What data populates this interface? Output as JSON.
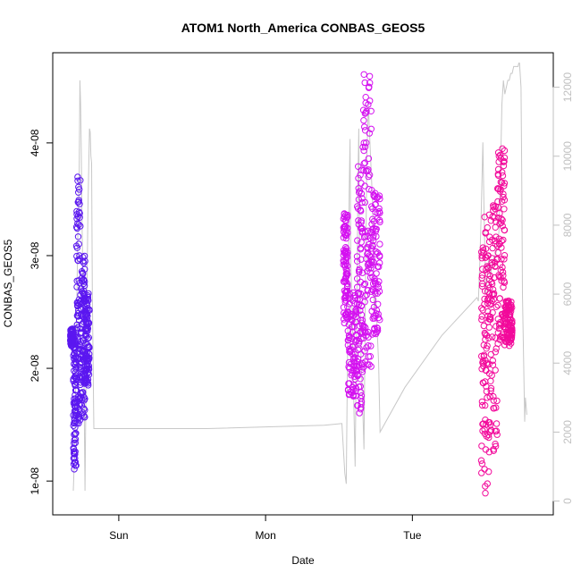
{
  "chart_data": {
    "type": "scatter",
    "title": "ATOM1 North_America CONBAS_GEOS5",
    "xlabel": "Date",
    "ylabel": "CONBAS_GEOS5",
    "x_ticks": [
      {
        "label": "Sun",
        "day": 1.0
      },
      {
        "label": "Mon",
        "day": 2.0
      },
      {
        "label": "Tue",
        "day": 3.0
      }
    ],
    "x_range_days": [
      0.55,
      3.96
    ],
    "ylim": [
      7e-09,
      4.8e-08
    ],
    "y_ticks": [
      {
        "label": "1e-08",
        "value": 1e-08
      },
      {
        "label": "2e-08",
        "value": 2e-08
      },
      {
        "label": "3e-08",
        "value": 3e-08
      },
      {
        "label": "4e-08",
        "value": 4e-08
      }
    ],
    "y2_range": [
      -400,
      13000
    ],
    "y2_ticks": [
      {
        "label": "0",
        "value": 0
      },
      {
        "label": "2000",
        "value": 2000
      },
      {
        "label": "4000",
        "value": 4000
      },
      {
        "label": "6000",
        "value": 6000
      },
      {
        "label": "8000",
        "value": 8000
      },
      {
        "label": "10000",
        "value": 10000
      },
      {
        "label": "12000",
        "value": 12000
      }
    ],
    "grey_line_color": "#c8c8c8",
    "grey_line": [
      [
        0.69,
        300
      ],
      [
        0.7,
        1500
      ],
      [
        0.71,
        4500
      ],
      [
        0.72,
        7500
      ],
      [
        0.73,
        9500
      ],
      [
        0.735,
        12200
      ],
      [
        0.74,
        11500
      ],
      [
        0.745,
        10000
      ],
      [
        0.75,
        8000
      ],
      [
        0.76,
        5200
      ],
      [
        0.765,
        2500
      ],
      [
        0.77,
        300
      ],
      [
        0.78,
        5000
      ],
      [
        0.79,
        8500
      ],
      [
        0.8,
        10800
      ],
      [
        0.805,
        10700
      ],
      [
        0.81,
        10000
      ],
      [
        0.815,
        9800
      ],
      [
        0.82,
        6000
      ],
      [
        0.83,
        2100
      ],
      [
        1.2,
        2100
      ],
      [
        1.6,
        2100
      ],
      [
        2.0,
        2150
      ],
      [
        2.4,
        2200
      ],
      [
        2.52,
        2250
      ],
      [
        2.53,
        1500
      ],
      [
        2.54,
        800
      ],
      [
        2.55,
        500
      ],
      [
        2.56,
        5000
      ],
      [
        2.57,
        9000
      ],
      [
        2.575,
        10500
      ],
      [
        2.58,
        7000
      ],
      [
        2.59,
        5500
      ],
      [
        2.6,
        3000
      ],
      [
        2.61,
        1000
      ],
      [
        2.62,
        5000
      ],
      [
        2.63,
        9500
      ],
      [
        2.635,
        10800
      ],
      [
        2.64,
        7000
      ],
      [
        2.65,
        4200
      ],
      [
        2.66,
        3000
      ],
      [
        2.67,
        1500
      ],
      [
        2.68,
        6000
      ],
      [
        2.69,
        10000
      ],
      [
        2.7,
        11500
      ],
      [
        2.71,
        10500
      ],
      [
        2.72,
        9500
      ],
      [
        2.73,
        8500
      ],
      [
        2.74,
        5500
      ],
      [
        2.75,
        6000
      ],
      [
        2.76,
        5000
      ],
      [
        2.77,
        4000
      ],
      [
        2.78,
        2000
      ],
      [
        2.95,
        3300
      ],
      [
        3.2,
        4800
      ],
      [
        3.44,
        5900
      ],
      [
        3.45,
        5800
      ],
      [
        3.46,
        7000
      ],
      [
        3.47,
        8500
      ],
      [
        3.48,
        10400
      ],
      [
        3.49,
        8000
      ],
      [
        3.5,
        6000
      ],
      [
        3.52,
        7000
      ],
      [
        3.53,
        6500
      ],
      [
        3.55,
        7000
      ],
      [
        3.57,
        7200
      ],
      [
        3.59,
        7800
      ],
      [
        3.6,
        9500
      ],
      [
        3.61,
        11500
      ],
      [
        3.62,
        12200
      ],
      [
        3.63,
        11800
      ],
      [
        3.65,
        12200
      ],
      [
        3.66,
        12200
      ],
      [
        3.67,
        12400
      ],
      [
        3.68,
        12400
      ],
      [
        3.69,
        12600
      ],
      [
        3.7,
        12600
      ],
      [
        3.71,
        12600
      ],
      [
        3.72,
        12600
      ],
      [
        3.725,
        12700
      ],
      [
        3.73,
        12700
      ],
      [
        3.74,
        12000
      ],
      [
        3.745,
        9500
      ],
      [
        3.75,
        6000
      ],
      [
        3.76,
        3500
      ],
      [
        3.765,
        2300
      ],
      [
        3.77,
        3000
      ],
      [
        3.78,
        2500
      ]
    ],
    "series": [
      {
        "color": "#5b17f0",
        "clusters": [
          {
            "x": [
              0.67,
              0.69
            ],
            "y": [
              2.2e-08,
              2.35e-08
            ]
          },
          {
            "x": [
              0.69,
              0.71
            ],
            "y": [
              1.1e-08,
              2.3e-08
            ]
          },
          {
            "x": [
              0.71,
              0.74
            ],
            "y": [
              1.5e-08,
              3.75e-08
            ]
          },
          {
            "x": [
              0.74,
              0.77
            ],
            "y": [
              1.55e-08,
              3e-08
            ]
          },
          {
            "x": [
              0.77,
              0.8
            ],
            "y": [
              1.85e-08,
              2.7e-08
            ]
          }
        ]
      },
      {
        "color": "#d411f0",
        "clusters": [
          {
            "x": [
              2.53,
              2.56
            ],
            "y": [
              2.4e-08,
              3.4e-08
            ]
          },
          {
            "x": [
              2.56,
              2.62
            ],
            "y": [
              1.75e-08,
              2.7e-08
            ]
          },
          {
            "x": [
              2.62,
              2.66
            ],
            "y": [
              1.6e-08,
              3.8e-08
            ]
          },
          {
            "x": [
              2.66,
              2.72
            ],
            "y": [
              2e-08,
              4.62e-08
            ]
          },
          {
            "x": [
              2.72,
              2.78
            ],
            "y": [
              2.3e-08,
              3.6e-08
            ]
          }
        ]
      },
      {
        "color": "#f20a9b",
        "clusters": [
          {
            "x": [
              3.47,
              3.52
            ],
            "y": [
              8.5e-09,
              3.35e-08
            ]
          },
          {
            "x": [
              3.52,
              3.58
            ],
            "y": [
              1.25e-08,
              3.45e-08
            ]
          },
          {
            "x": [
              3.58,
              3.63
            ],
            "y": [
              2.2e-08,
              3.95e-08
            ]
          },
          {
            "x": [
              3.63,
              3.68
            ],
            "y": [
              2.2e-08,
              2.6e-08
            ]
          }
        ]
      }
    ]
  }
}
